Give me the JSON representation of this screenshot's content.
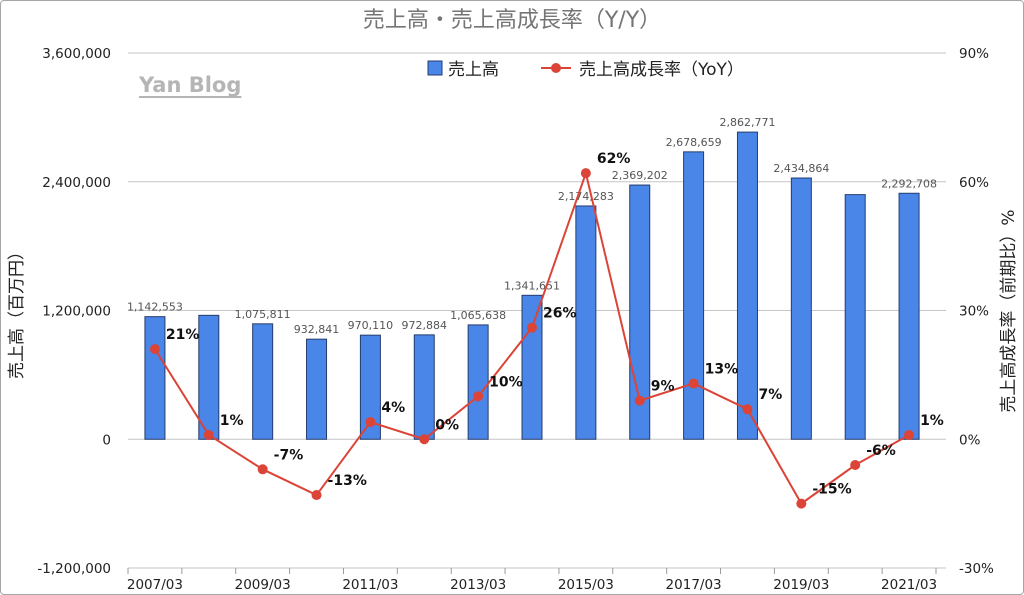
{
  "watermark": "Yan Blog",
  "chart_data": {
    "type": "bar",
    "title": "売上高・売上高成長率（Y/Y）",
    "categories": [
      "2007/03",
      "",
      "2009/03",
      "",
      "2011/03",
      "",
      "2013/03",
      "",
      "2015/03",
      "",
      "2017/03",
      "",
      "2019/03",
      "",
      "2021/03"
    ],
    "ylabel_left": "売上高（百万円）",
    "ylabel_right": "売上高成長率（前期比）%",
    "ylim_left": [
      -1200000,
      3600000
    ],
    "ylim_right": [
      -30,
      90
    ],
    "yticks_left": [
      {
        "value": 3600000,
        "label": "3,600,000"
      },
      {
        "value": 2400000,
        "label": "2,400,000"
      },
      {
        "value": 1200000,
        "label": "1,200,000"
      },
      {
        "value": 0,
        "label": "0"
      },
      {
        "value": -1200000,
        "label": "-1,200,000"
      }
    ],
    "yticks_right": [
      {
        "value": 90,
        "label": "90%"
      },
      {
        "value": 60,
        "label": "60%"
      },
      {
        "value": 30,
        "label": "30%"
      },
      {
        "value": 0,
        "label": "0%"
      },
      {
        "value": -30,
        "label": "-30%"
      }
    ],
    "grid": true,
    "legend": "top-center",
    "series": [
      {
        "name": "売上高",
        "type": "bar",
        "axis": "left",
        "color": "#4a86e8",
        "values": [
          1142553,
          1155000,
          1075811,
          932841,
          970110,
          972884,
          1065638,
          1341651,
          2174283,
          2369202,
          2678659,
          2862771,
          2434864,
          2280000,
          2292708
        ],
        "labels": [
          "1,142,553",
          "",
          "1,075,811",
          "932,841",
          "970,110",
          "972,884",
          "1,065,638",
          "1,341,651",
          "2,174,283",
          "2,369,202",
          "2,678,659",
          "2,862,771",
          "2,434,864",
          "",
          "2,292,708"
        ]
      },
      {
        "name": "売上高成長率（YoY）",
        "type": "line",
        "axis": "right",
        "color": "#db4437",
        "values": [
          21,
          1,
          -7,
          -13,
          4,
          0,
          10,
          26,
          62,
          9,
          13,
          7,
          -15,
          -6,
          1
        ],
        "labels": [
          "21%",
          "1%",
          "-7%",
          "-13%",
          "4%",
          "0%",
          "10%",
          "26%",
          "62%",
          "9%",
          "13%",
          "7%",
          "-15%",
          "-6%",
          "1%"
        ]
      }
    ]
  }
}
